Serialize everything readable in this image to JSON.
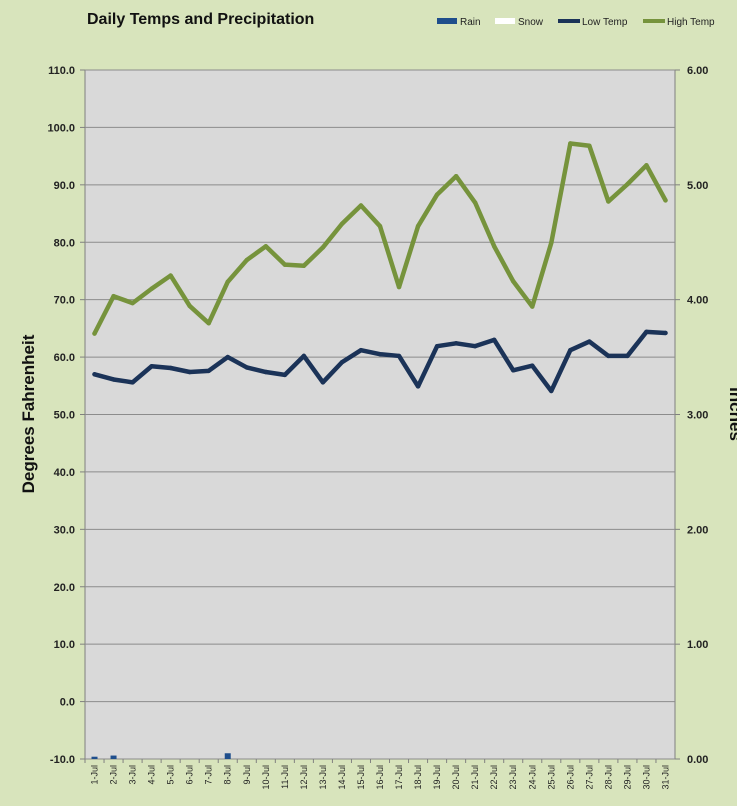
{
  "chart_data": {
    "type": "line",
    "title": "Daily Temps and Precipitation",
    "ylabel": "Degrees Fahrenheit",
    "y2label": "Inches",
    "ylim": [
      -10,
      110
    ],
    "y2lim": [
      0,
      6
    ],
    "yticks": [
      "110.0",
      "100.0",
      "90.0",
      "80.0",
      "70.0",
      "60.0",
      "50.0",
      "40.0",
      "30.0",
      "20.0",
      "10.0",
      "0.0",
      "-10.0"
    ],
    "y2ticks": [
      "6.00",
      "5.00",
      "4.00",
      "3.00",
      "2.00",
      "1.00",
      "0.00"
    ],
    "grid": true,
    "legend_position": "top-right",
    "categories": [
      "1-Jul",
      "2-Jul",
      "3-Jul",
      "4-Jul",
      "5-Jul",
      "6-Jul",
      "7-Jul",
      "8-Jul",
      "9-Jul",
      "10-Jul",
      "11-Jul",
      "12-Jul",
      "13-Jul",
      "14-Jul",
      "15-Jul",
      "16-Jul",
      "17-Jul",
      "18-Jul",
      "19-Jul",
      "20-Jul",
      "21-Jul",
      "22-Jul",
      "23-Jul",
      "24-Jul",
      "25-Jul",
      "26-Jul",
      "27-Jul",
      "28-Jul",
      "29-Jul",
      "30-Jul",
      "31-Jul"
    ],
    "series": [
      {
        "name": "Rain",
        "type": "bar",
        "axis": "right",
        "color": "#1f4e8c",
        "values": [
          0.02,
          0.03,
          0,
          0,
          0,
          0,
          0,
          0.05,
          0,
          0,
          0,
          0,
          0,
          0,
          0,
          0,
          0,
          0,
          0,
          0,
          0,
          0,
          0,
          0,
          0,
          0,
          0,
          0,
          0,
          0,
          0
        ]
      },
      {
        "name": "Snow",
        "type": "bar",
        "axis": "right",
        "color": "#ffffff",
        "values": [
          0,
          0,
          0,
          0,
          0,
          0,
          0,
          0,
          0,
          0,
          0,
          0,
          0,
          0,
          0,
          0,
          0,
          0,
          0,
          0,
          0,
          0,
          0,
          0,
          0,
          0,
          0,
          0,
          0,
          0,
          0
        ]
      },
      {
        "name": "Low Temp",
        "type": "line",
        "axis": "left",
        "color": "#1b3358",
        "values": [
          57,
          56.1,
          55.6,
          58.4,
          58.1,
          57.4,
          57.6,
          60,
          58.2,
          57.4,
          56.9,
          60.2,
          55.6,
          59.1,
          61.2,
          60.5,
          60.2,
          54.9,
          61.9,
          62.4,
          61.9,
          63,
          57.7,
          58.5,
          54.1,
          61.2,
          62.7,
          60.2,
          60.2,
          64.4,
          64.2
        ]
      },
      {
        "name": "High Temp",
        "type": "line",
        "axis": "left",
        "color": "#76933c",
        "values": [
          64.1,
          70.6,
          69.4,
          71.9,
          74.2,
          68.9,
          65.9,
          73.1,
          76.9,
          79.3,
          76.1,
          75.9,
          79.1,
          83.2,
          86.4,
          82.8,
          72.2,
          82.8,
          88.3,
          91.5,
          86.9,
          79.3,
          73.2,
          68.8,
          79.9,
          97.2,
          96.8,
          87.1,
          90.1,
          93.4,
          87.3
        ]
      }
    ]
  }
}
